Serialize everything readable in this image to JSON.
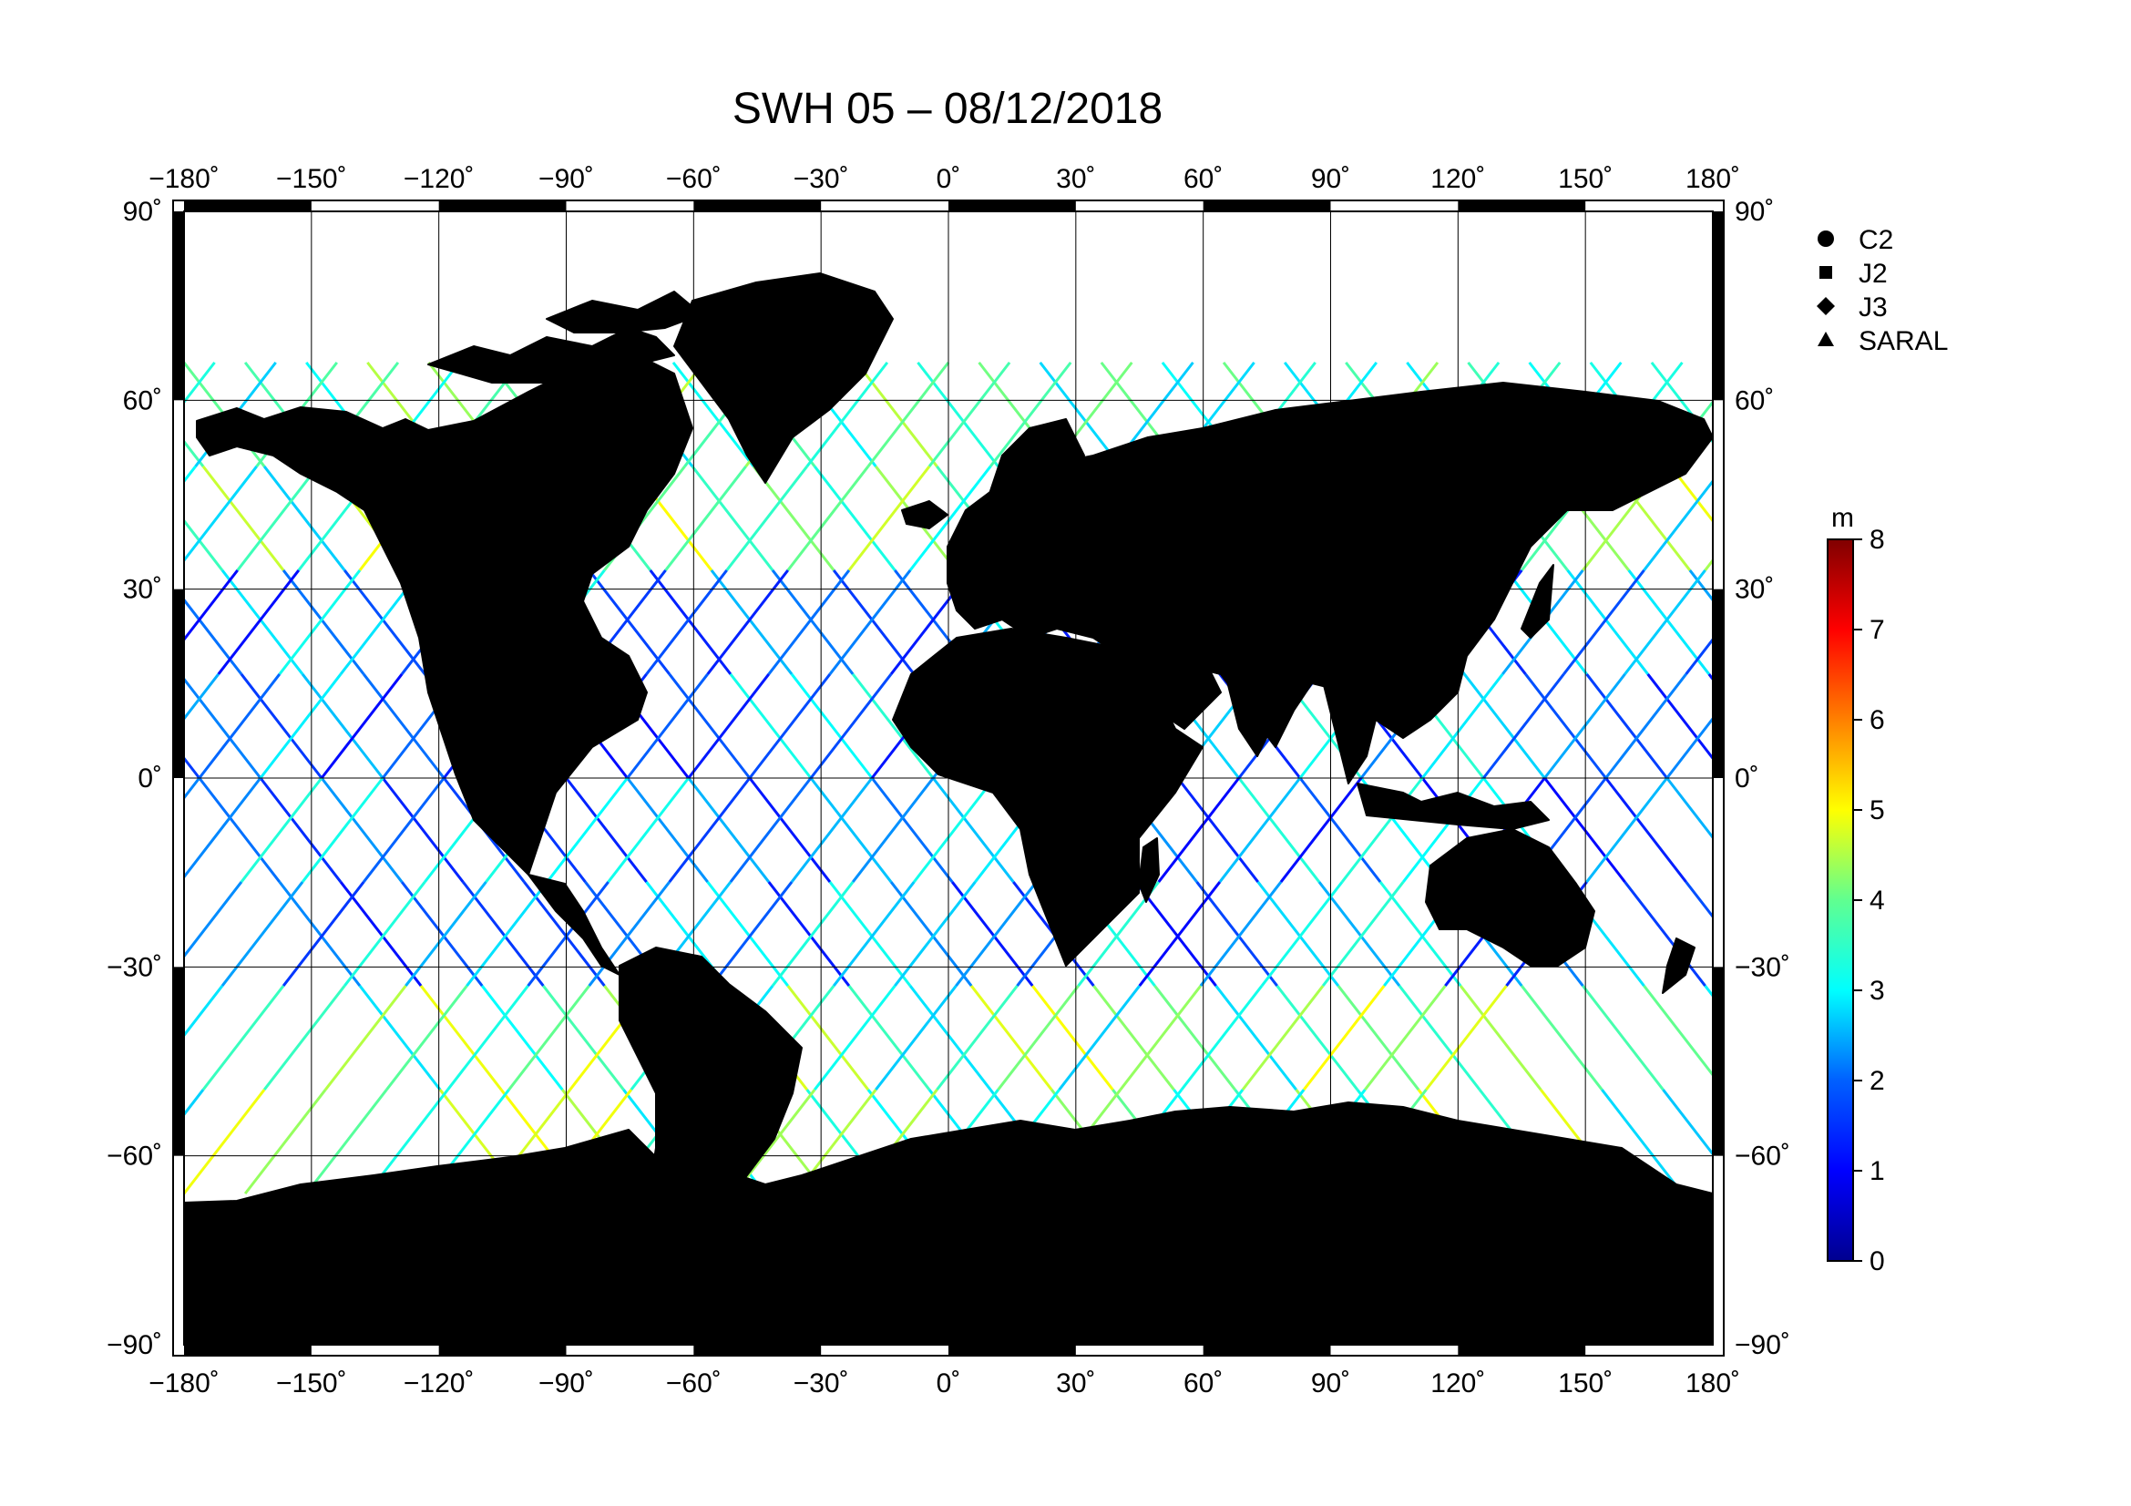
{
  "title": "SWH 05 – 08/12/2018",
  "colors": {
    "land": "#bebebe",
    "ocean": "#ffffff",
    "coast": "#000000",
    "grid": "#000000"
  },
  "map": {
    "projection": "equirectangular",
    "lon_range": [
      -180,
      180
    ],
    "lat_range": [
      -90,
      90
    ],
    "lon_ticks": [
      -180,
      -150,
      -120,
      -90,
      -60,
      -30,
      0,
      30,
      60,
      90,
      120,
      150,
      180
    ],
    "lat_ticks": [
      90,
      60,
      30,
      0,
      -30,
      -60,
      -90
    ],
    "lon_labels": [
      "−180˚",
      "−150˚",
      "−120˚",
      "−90˚",
      "−60˚",
      "−30˚",
      "0˚",
      "30˚",
      "60˚",
      "90˚",
      "120˚",
      "150˚",
      "180˚"
    ],
    "lat_labels": [
      "90˚",
      "60˚",
      "30˚",
      "0˚",
      "−30˚",
      "−60˚",
      "−90˚"
    ],
    "grid": true
  },
  "legend": {
    "items": [
      {
        "label": "C2",
        "symbol": "circle"
      },
      {
        "label": "J2",
        "symbol": "square"
      },
      {
        "label": "J3",
        "symbol": "diamond"
      },
      {
        "label": "SARAL",
        "symbol": "triangle"
      }
    ]
  },
  "colorbar": {
    "unit": "m",
    "min": 0,
    "max": 8,
    "ticks": [
      "0",
      "1",
      "2",
      "3",
      "4",
      "5",
      "6",
      "7",
      "8"
    ],
    "colormap": "jet"
  }
}
